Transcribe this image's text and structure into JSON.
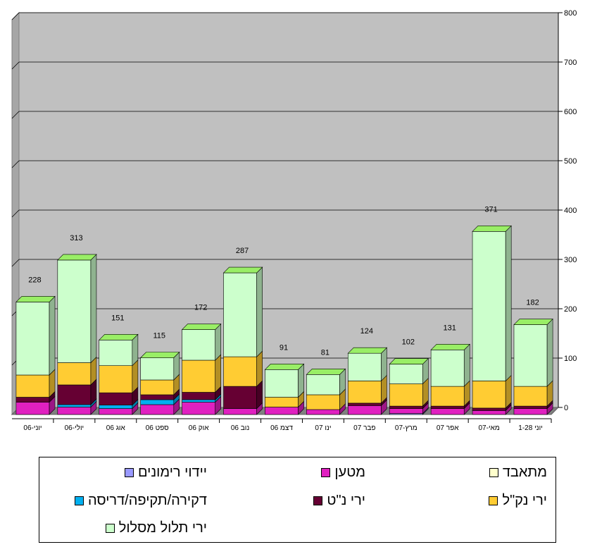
{
  "chart_data": {
    "type": "bar",
    "stacked": true,
    "three_d": true,
    "categories": [
      "יוני-06",
      "יולי-06",
      "אוג 06",
      "ספט 06",
      "אוק 06",
      "נוב 06",
      "דצמ 06",
      "ינו 07",
      "פבר 07",
      "מרץ-07",
      "אפר 07",
      "מאי-07",
      "יוני 1-28"
    ],
    "totals": [
      228,
      313,
      151,
      115,
      172,
      287,
      91,
      81,
      124,
      102,
      131,
      371,
      182
    ],
    "total_labels": [
      "228",
      "313",
      "151",
      "115",
      "172",
      "287",
      "91",
      "81",
      "124",
      "102",
      "131",
      "371",
      "182"
    ],
    "ylim": [
      0,
      800
    ],
    "yticks": [
      0,
      100,
      200,
      300,
      400,
      500,
      600,
      700,
      800
    ],
    "ytick_labels": [
      "0",
      "100",
      "200",
      "300",
      "400",
      "500",
      "600",
      "700",
      "800"
    ],
    "y_axis_side": "right",
    "grid": true,
    "legend_position": "bottom",
    "series": [
      {
        "name": "יידוי רימונים",
        "color": "#9999ff",
        "values": [
          0,
          0,
          0,
          0,
          0,
          0,
          0,
          0,
          0,
          2,
          0,
          0,
          0
        ]
      },
      {
        "name": "מטען",
        "color": "#e020c0",
        "values": [
          25,
          15,
          12,
          20,
          25,
          12,
          15,
          10,
          18,
          10,
          12,
          8,
          12
        ]
      },
      {
        "name": "מתאבד",
        "color": "#ffffcc",
        "values": [
          0,
          0,
          0,
          0,
          0,
          0,
          0,
          0,
          0,
          0,
          0,
          0,
          0
        ]
      },
      {
        "name": "דקירה/תקיפה/דריסה",
        "color": "#00b0f0",
        "values": [
          0,
          5,
          7,
          10,
          5,
          0,
          0,
          0,
          0,
          0,
          0,
          0,
          0
        ]
      },
      {
        "name": "ירי נ\"ט",
        "color": "#660033",
        "values": [
          10,
          40,
          25,
          10,
          15,
          45,
          0,
          0,
          5,
          5,
          5,
          5,
          5
        ]
      },
      {
        "name": "ירי נק\"ל",
        "color": "#ffcc33",
        "values": [
          45,
          45,
          55,
          30,
          65,
          60,
          20,
          30,
          45,
          45,
          40,
          55,
          40
        ]
      },
      {
        "name": "ירי תלול מסלול",
        "color": "#ccffcc",
        "values": [
          148,
          208,
          52,
          45,
          62,
          170,
          56,
          41,
          56,
          40,
          74,
          303,
          125
        ]
      }
    ]
  },
  "legend": {
    "items": [
      {
        "label": "מתאבד",
        "color": "#ffffcc"
      },
      {
        "label": "מטען",
        "color": "#e020c0"
      },
      {
        "label": "יידוי רימונים",
        "color": "#9999ff"
      },
      {
        "label": "ירי נק\"ל",
        "color": "#ffcc33"
      },
      {
        "label": "ירי נ\"ט",
        "color": "#660033"
      },
      {
        "label": "דקירה/תקיפה/דריסה",
        "color": "#00b0f0"
      },
      {
        "label": "ירי תלול מסלול",
        "color": "#ccffcc"
      }
    ]
  }
}
